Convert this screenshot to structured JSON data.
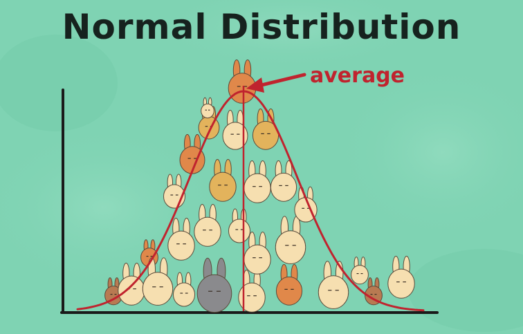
{
  "title": "Normal Distribution",
  "annotation": {
    "label": "average",
    "color": "#c0232e"
  },
  "colors": {
    "background": "#7fd3b3",
    "axis": "#1a1a1a",
    "curve": "#c0232e",
    "bunny_cream": "#f6dfb0",
    "bunny_tan": "#e3b35c",
    "bunny_orange": "#e0884a",
    "bunny_gray": "#8a8a8d",
    "bunny_brown": "#b87a52"
  },
  "figure_elements": [
    "y-axis",
    "x-axis",
    "bell-curve",
    "mean-line",
    "bunny-stack"
  ]
}
